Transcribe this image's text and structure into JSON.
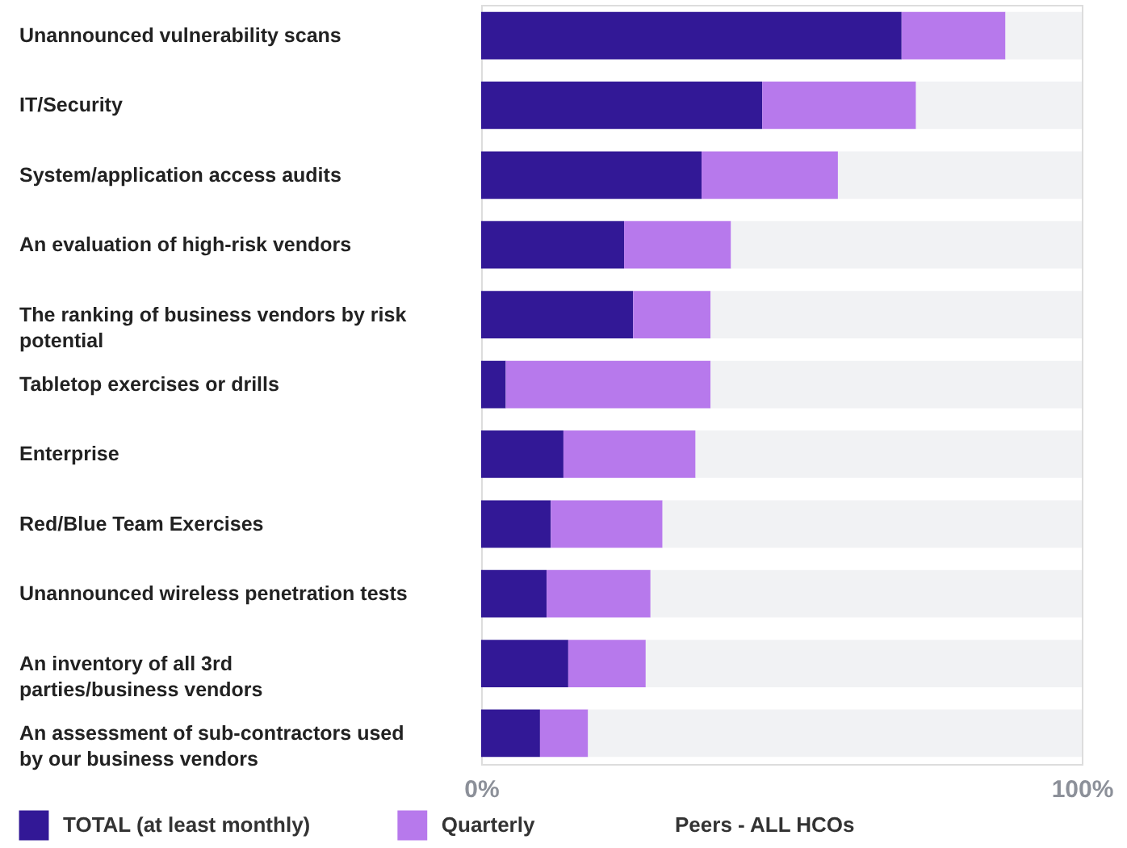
{
  "chart_data": {
    "type": "bar",
    "orientation": "horizontal",
    "stacked": true,
    "categories": [
      "Unannounced vulnerability scans",
      "IT/Security",
      "System/application access audits",
      "An evaluation of high-risk vendors",
      "The ranking of business vendors by risk potential",
      "Tabletop exercises or drills",
      "Enterprise",
      "Red/Blue Team Exercises",
      "Unannounced wireless penetration tests",
      "An inventory of all 3rd parties/business vendors",
      "An assessment of sub-contractors used by our business vendors"
    ],
    "series": [
      {
        "name": "TOTAL (at least monthly)",
        "color": "#321896",
        "values": [
          70.0,
          46.8,
          36.7,
          23.8,
          25.3,
          4.1,
          13.7,
          11.6,
          10.9,
          14.5,
          9.8
        ]
      },
      {
        "name": "Quarterly",
        "color": "#b779ec",
        "values": [
          17.3,
          25.6,
          22.7,
          17.8,
          12.9,
          34.1,
          22.0,
          18.6,
          17.3,
          12.9,
          8.0
        ]
      },
      {
        "color": "#f1f2f4",
        "values": [
          12.7,
          27.6,
          40.6,
          58.4,
          61.8,
          61.8,
          64.3,
          69.8,
          71.8,
          72.6,
          82.2
        ]
      }
    ],
    "xlim": [
      0,
      100
    ],
    "xticks": [
      {
        "value": 0,
        "label": "0%"
      },
      {
        "value": 100,
        "label": "100%"
      }
    ],
    "annotations": [
      "Peers - ALL HCOs"
    ],
    "legend": "bottom",
    "grid": false
  }
}
